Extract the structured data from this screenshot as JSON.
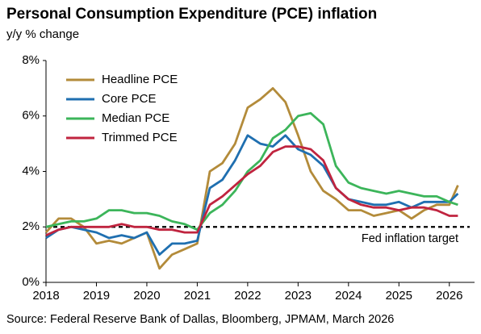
{
  "chart_data": {
    "type": "line",
    "title": "Personal Consumption Expenditure (PCE) inflation",
    "subtitle": "y/y % change",
    "source": "Source: Federal Reserve Bank of Dallas, Bloomberg, JPMAM, March 2026",
    "x": [
      2018,
      2018.25,
      2018.5,
      2018.75,
      2019,
      2019.25,
      2019.5,
      2019.75,
      2020,
      2020.25,
      2020.5,
      2020.75,
      2021,
      2021.25,
      2021.5,
      2021.75,
      2022,
      2022.25,
      2022.5,
      2022.75,
      2023,
      2023.25,
      2023.5,
      2023.75,
      2024,
      2024.25,
      2024.5,
      2024.75,
      2025,
      2025.25,
      2025.5,
      2025.75,
      2026,
      2026.17
    ],
    "series": [
      {
        "name": "Headline PCE",
        "color": "#b38b3a",
        "values": [
          1.8,
          2.3,
          2.3,
          2.0,
          1.4,
          1.5,
          1.4,
          1.6,
          1.8,
          0.5,
          1.0,
          1.2,
          1.4,
          4.0,
          4.3,
          5.0,
          6.3,
          6.6,
          7.0,
          6.5,
          5.3,
          4.0,
          3.3,
          3.0,
          2.6,
          2.6,
          2.4,
          2.5,
          2.6,
          2.3,
          2.6,
          2.8,
          2.8,
          3.5
        ]
      },
      {
        "name": "Core PCE",
        "color": "#1f6fb0",
        "values": [
          1.6,
          1.9,
          2.0,
          1.9,
          1.8,
          1.6,
          1.7,
          1.6,
          1.8,
          1.0,
          1.4,
          1.4,
          1.5,
          3.4,
          3.7,
          4.4,
          5.3,
          5.0,
          4.9,
          5.3,
          4.8,
          4.6,
          4.2,
          3.4,
          3.0,
          2.9,
          2.8,
          2.8,
          2.9,
          2.7,
          2.9,
          2.9,
          2.9,
          3.2
        ]
      },
      {
        "name": "Median PCE",
        "color": "#3cb55a",
        "values": [
          2.0,
          2.1,
          2.2,
          2.2,
          2.3,
          2.6,
          2.6,
          2.5,
          2.5,
          2.4,
          2.2,
          2.1,
          1.9,
          2.5,
          2.8,
          3.3,
          4.0,
          4.4,
          5.2,
          5.5,
          6.0,
          6.1,
          5.7,
          4.2,
          3.6,
          3.4,
          3.3,
          3.2,
          3.3,
          3.2,
          3.1,
          3.1,
          2.9,
          2.8
        ]
      },
      {
        "name": "Trimmed PCE",
        "color": "#c0243f",
        "values": [
          1.7,
          1.9,
          2.0,
          2.0,
          2.0,
          2.0,
          2.1,
          2.0,
          2.0,
          1.9,
          1.9,
          1.8,
          1.8,
          2.8,
          3.1,
          3.5,
          3.9,
          4.2,
          4.7,
          4.9,
          4.9,
          4.8,
          4.4,
          3.4,
          3.0,
          2.8,
          2.7,
          2.7,
          2.6,
          2.7,
          2.7,
          2.6,
          2.4,
          2.4
        ]
      }
    ],
    "reference_line": {
      "value": 2,
      "label": "Fed inflation target"
    },
    "xlim": [
      2018,
      2026.5
    ],
    "xticks": [
      2018,
      2019,
      2020,
      2021,
      2022,
      2023,
      2024,
      2025,
      2026
    ],
    "ylim": [
      0,
      8
    ],
    "yticks": [
      {
        "value": 0,
        "label": "0%"
      },
      {
        "value": 2,
        "label": "2%"
      },
      {
        "value": 4,
        "label": "4%"
      },
      {
        "value": 6,
        "label": "6%"
      },
      {
        "value": 8,
        "label": "8%"
      }
    ],
    "grid": false,
    "legend": "top-left"
  }
}
